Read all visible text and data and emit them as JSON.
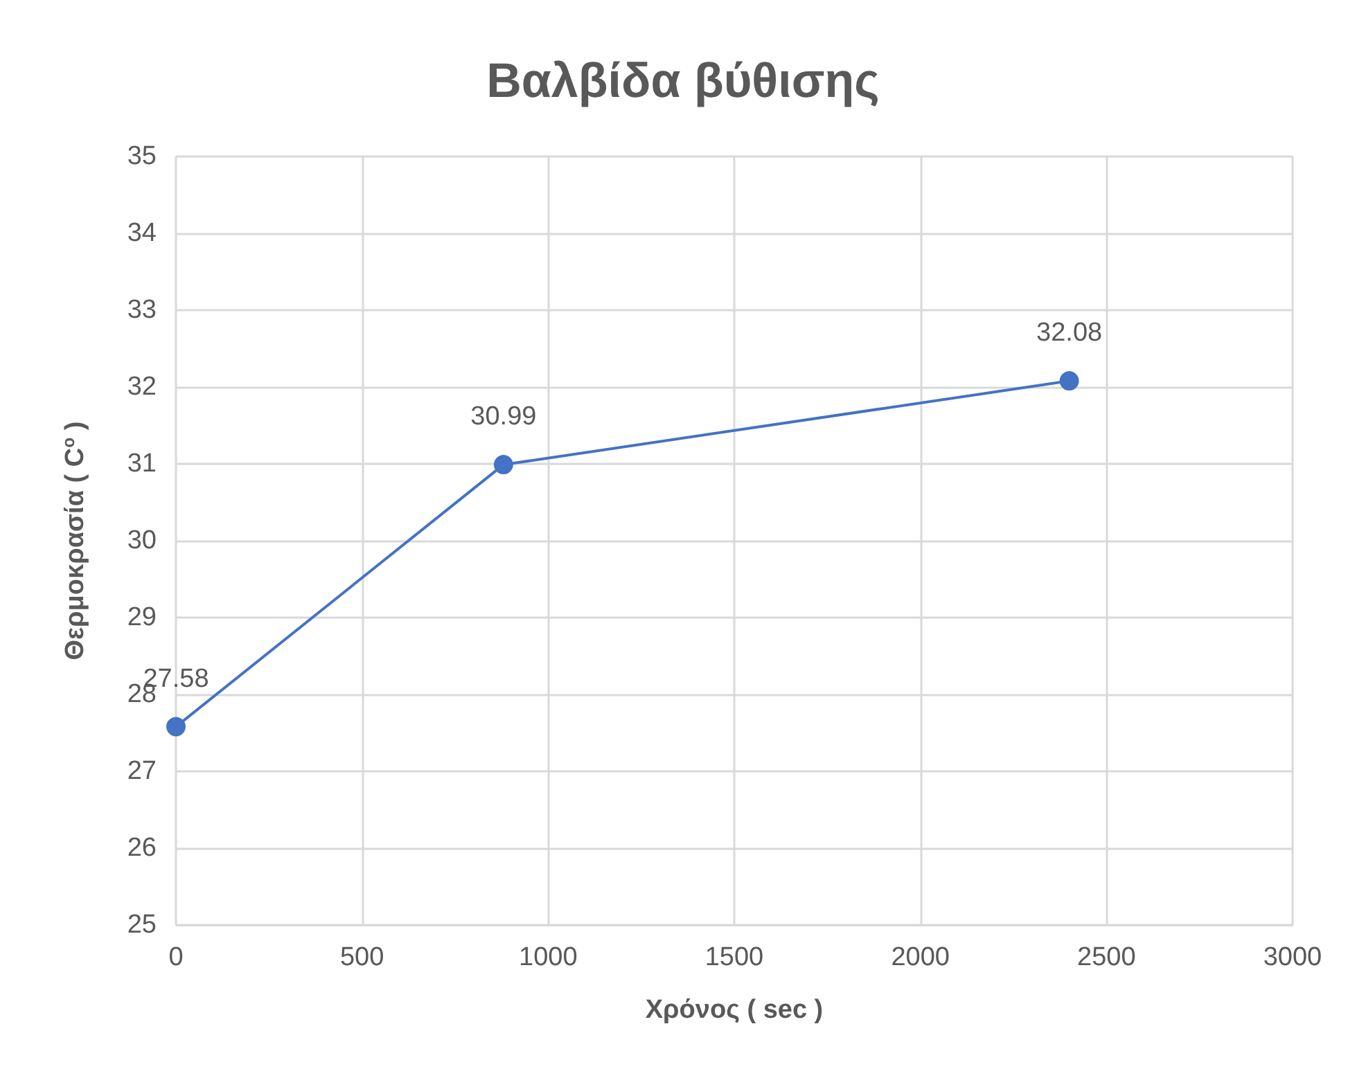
{
  "chart_data": {
    "type": "line",
    "title": "Βαλβίδα βύθισης",
    "xlabel": "Χρόνος ( sec )",
    "ylabel": "Θερμοκρασία ( C$^{o}$ )",
    "x": [
      0,
      880,
      2400
    ],
    "series": [
      {
        "color": "#4472c4",
        "values": [
          27.58,
          30.99,
          32.08
        ]
      }
    ],
    "xlim": [
      0,
      3000
    ],
    "xticks": [
      0,
      500,
      1000,
      1500,
      2000,
      2500,
      3000
    ],
    "ylim": [
      25,
      35
    ],
    "yticks": [
      25,
      26,
      27,
      28,
      29,
      30,
      31,
      32,
      33,
      34,
      35
    ],
    "grid": true,
    "marker": "circle",
    "line_style": "solid",
    "data_labels": true
  }
}
